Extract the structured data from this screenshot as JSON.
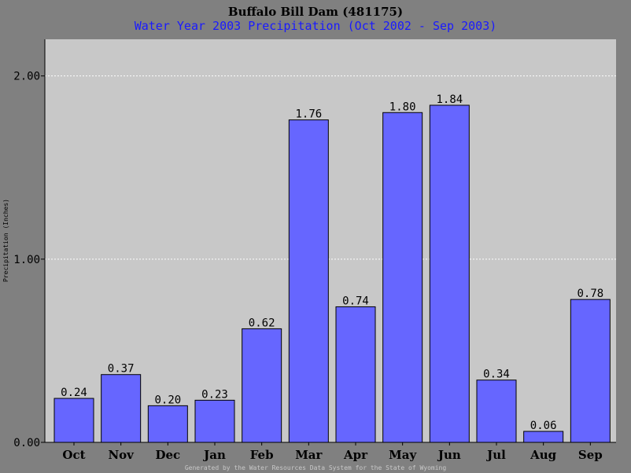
{
  "chart_data": {
    "type": "bar",
    "title": "Buffalo Bill Dam (481175)",
    "subtitle": "Water Year 2003 Precipitation (Oct 2002 - Sep 2003)",
    "ylabel": "Precipitation (Inches)",
    "xlabel": "",
    "categories": [
      "Oct",
      "Nov",
      "Dec",
      "Jan",
      "Feb",
      "Mar",
      "Apr",
      "May",
      "Jun",
      "Jul",
      "Aug",
      "Sep"
    ],
    "values": [
      0.24,
      0.37,
      0.2,
      0.23,
      0.62,
      1.76,
      0.74,
      1.8,
      1.84,
      0.34,
      0.06,
      0.78
    ],
    "value_labels": [
      "0.24",
      "0.37",
      "0.20",
      "0.23",
      "0.62",
      "1.76",
      "0.74",
      "1.80",
      "1.84",
      "0.34",
      "0.06",
      "0.78"
    ],
    "ylim": [
      0,
      2.2
    ],
    "yticks": [
      0,
      1,
      2
    ],
    "ytick_labels": [
      "0.00",
      "1.00",
      "2.00"
    ],
    "grid": true,
    "colors": {
      "bar": "#6666ff",
      "plot_bg": "#c8c8c8",
      "page_bg": "#808080",
      "subtitle": "#1a1aff",
      "grid": "#ffffff"
    }
  },
  "footer": "Generated by the Water Resources Data System for the State of Wyoming"
}
